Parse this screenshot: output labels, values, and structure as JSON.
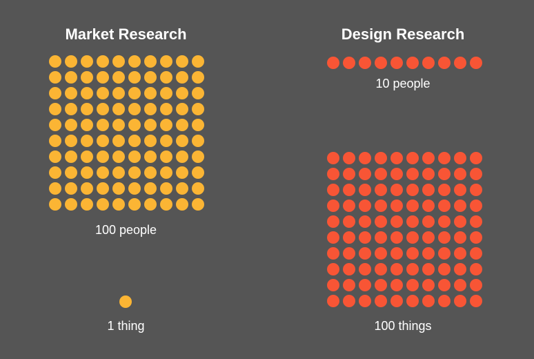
{
  "left_panel": {
    "title": "Market Research",
    "people_label": "100 people",
    "things_label": "1 thing",
    "dot_color": "#FBB534",
    "people_count": 100,
    "things_count": 1
  },
  "right_panel": {
    "title": "Design Research",
    "people_label": "10 people",
    "things_label": "100 things",
    "dot_color": "#F85535",
    "people_count": 10,
    "things_count": 100
  }
}
